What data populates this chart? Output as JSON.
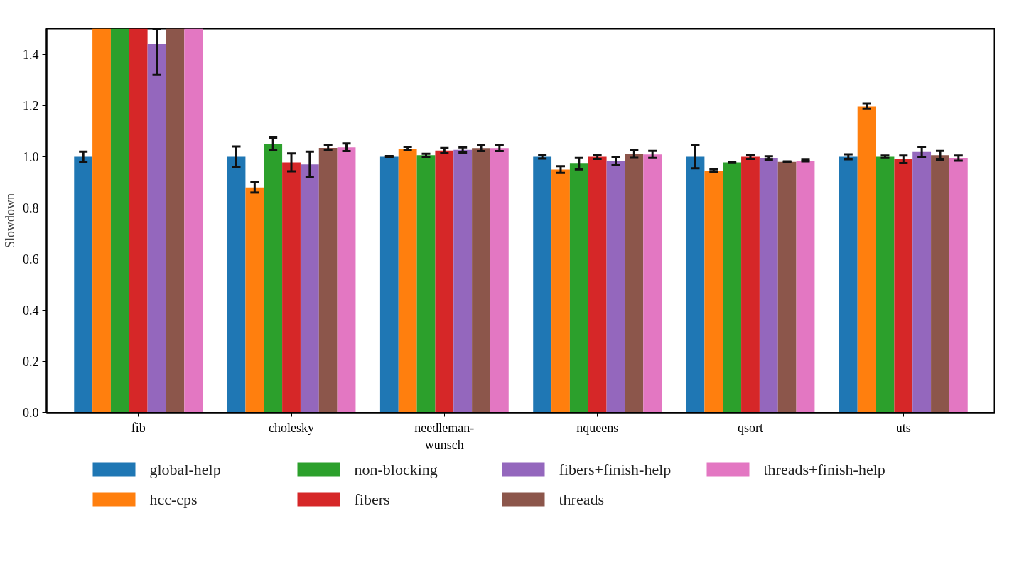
{
  "chart_data": {
    "type": "bar",
    "ylabel": "Slowdown",
    "categories": [
      "fib",
      "cholesky",
      "needleman-wunsch",
      "nqueens",
      "qsort",
      "uts"
    ],
    "ylim": [
      0,
      1.5
    ],
    "yticks": [
      {
        "value": 0,
        "label": "0.0"
      },
      0.2,
      0.4,
      0.6,
      0.8,
      {
        "value": 1,
        "label": "1.0"
      },
      1.2,
      1.4
    ],
    "grid": false,
    "legend": "bottom",
    "series": [
      {
        "name": "global-help",
        "color": "#1f77b4",
        "values": [
          1.0,
          1.0,
          1.0,
          1.0,
          1.0,
          1.0
        ],
        "errors": [
          0.02,
          0.04,
          0.003,
          0.007,
          0.045,
          0.01
        ]
      },
      {
        "name": "hcc-cps",
        "color": "#ff7f0e",
        "values": [
          1.5,
          0.88,
          1.032,
          0.95,
          0.946,
          1.197
        ],
        "errors": [
          null,
          0.02,
          0.007,
          0.013,
          0.005,
          0.01
        ]
      },
      {
        "name": "non-blocking",
        "color": "#2ca02c",
        "values": [
          1.5,
          1.05,
          1.006,
          0.973,
          0.978,
          1.0
        ],
        "errors": [
          null,
          0.025,
          0.006,
          0.022,
          0.002,
          0.005
        ]
      },
      {
        "name": "fibers",
        "color": "#d62728",
        "values": [
          1.5,
          0.978,
          1.024,
          1.0,
          1.0,
          0.99
        ],
        "errors": [
          null,
          0.035,
          0.01,
          0.008,
          0.008,
          0.015
        ]
      },
      {
        "name": "fibers+finish-help",
        "color": "#9467bd",
        "values": [
          1.44,
          0.97,
          1.027,
          0.983,
          0.995,
          1.019
        ],
        "errors": [
          [
            1.32,
            1.5
          ],
          0.05,
          0.01,
          0.016,
          0.007,
          0.02
        ]
      },
      {
        "name": "threads",
        "color": "#8c564b",
        "values": [
          1.5,
          1.035,
          1.034,
          1.011,
          0.98,
          1.006
        ],
        "errors": [
          null,
          0.01,
          0.012,
          0.015,
          0.002,
          0.017
        ]
      },
      {
        "name": "threads+finish-help",
        "color": "#e377c2",
        "values": [
          1.5,
          1.037,
          1.034,
          1.009,
          0.985,
          0.995
        ],
        "errors": [
          null,
          0.015,
          0.012,
          0.014,
          0.003,
          0.01
        ]
      }
    ]
  }
}
